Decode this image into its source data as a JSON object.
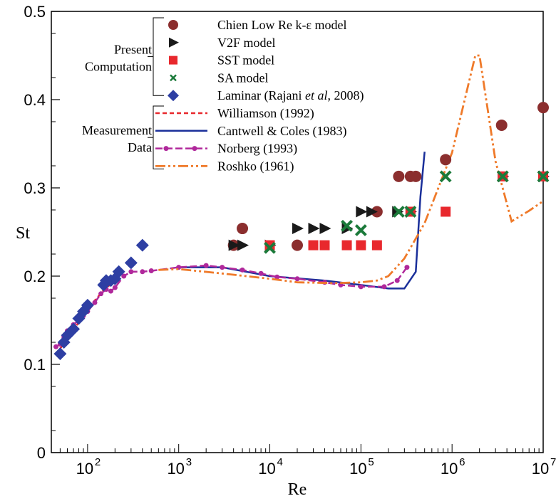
{
  "chart_data": {
    "type": "scatter",
    "xlabel": "Re",
    "ylabel": "St",
    "xscale": "log",
    "xlim": [
      40,
      10000000
    ],
    "ylim": [
      0,
      0.5
    ],
    "x_ticks": [
      {
        "value": 100,
        "mantissa": "10",
        "exp": "2"
      },
      {
        "value": 1000,
        "mantissa": "10",
        "exp": "3"
      },
      {
        "value": 10000,
        "mantissa": "10",
        "exp": "4"
      },
      {
        "value": 100000,
        "mantissa": "10",
        "exp": "5"
      },
      {
        "value": 1000000,
        "mantissa": "10",
        "exp": "6"
      },
      {
        "value": 10000000,
        "mantissa": "10",
        "exp": "7"
      }
    ],
    "y_ticks": [
      {
        "value": 0,
        "label": "0"
      },
      {
        "value": 0.1,
        "label": "0.1"
      },
      {
        "value": 0.2,
        "label": "0.2"
      },
      {
        "value": 0.3,
        "label": "0.3"
      },
      {
        "value": 0.4,
        "label": "0.4"
      },
      {
        "value": 0.5,
        "label": "0.5"
      }
    ],
    "groups": [
      {
        "lines": [
          "Present",
          "Computation"
        ],
        "series_from": 0,
        "series_to": 4
      },
      {
        "lines": [
          "Measurement",
          "Data"
        ],
        "series_from": 5,
        "series_to": 8
      }
    ],
    "series": [
      {
        "name": "Chien Low Re k-ε model",
        "kind": "marker",
        "marker": "circle",
        "color": "#8b2e2e",
        "points": [
          [
            4000,
            0.235
          ],
          [
            5000,
            0.254
          ],
          [
            20000,
            0.235
          ],
          [
            150000,
            0.273
          ],
          [
            260000,
            0.313
          ],
          [
            350000,
            0.313
          ],
          [
            400000,
            0.313
          ],
          [
            850000,
            0.332
          ],
          [
            3500000,
            0.371
          ],
          [
            10000000,
            0.391
          ]
        ]
      },
      {
        "name": "V2F model",
        "kind": "marker",
        "marker": "triangle",
        "color": "#1a1a1a",
        "points": [
          [
            4000,
            0.235
          ],
          [
            5000,
            0.235
          ],
          [
            10000,
            0.235
          ],
          [
            20000,
            0.254
          ],
          [
            30000,
            0.254
          ],
          [
            40000,
            0.254
          ],
          [
            70000,
            0.254
          ],
          [
            100000,
            0.273
          ],
          [
            130000,
            0.273
          ],
          [
            250000,
            0.273
          ],
          [
            350000,
            0.273
          ],
          [
            3600000,
            0.313
          ],
          [
            10000000,
            0.313
          ]
        ]
      },
      {
        "name": "SST model",
        "kind": "marker",
        "marker": "square",
        "color": "#e8282d",
        "points": [
          [
            10000,
            0.235
          ],
          [
            30000,
            0.235
          ],
          [
            40000,
            0.235
          ],
          [
            70000,
            0.235
          ],
          [
            100000,
            0.235
          ],
          [
            150000,
            0.235
          ],
          [
            350000,
            0.273
          ],
          [
            850000,
            0.273
          ],
          [
            3600000,
            0.313
          ],
          [
            10000000,
            0.313
          ]
        ]
      },
      {
        "name": "SA  model",
        "kind": "marker",
        "marker": "x",
        "color": "#1b7a3a",
        "points": [
          [
            10000,
            0.232
          ],
          [
            70000,
            0.257
          ],
          [
            100000,
            0.252
          ],
          [
            260000,
            0.273
          ],
          [
            350000,
            0.273
          ],
          [
            850000,
            0.313
          ],
          [
            3600000,
            0.313
          ],
          [
            10000000,
            0.313
          ]
        ]
      },
      {
        "name": "Laminar (Rajani et al, 2008)",
        "label_prefix": "Laminar (Rajani ",
        "label_italic": "et al",
        "label_suffix": ", 2008)",
        "kind": "marker",
        "marker": "diamond",
        "color": "#2e3fa3",
        "points": [
          [
            50,
            0.112
          ],
          [
            55,
            0.125
          ],
          [
            60,
            0.133
          ],
          [
            70,
            0.14
          ],
          [
            80,
            0.152
          ],
          [
            90,
            0.16
          ],
          [
            100,
            0.167
          ],
          [
            150,
            0.19
          ],
          [
            160,
            0.195
          ],
          [
            180,
            0.195
          ],
          [
            200,
            0.197
          ],
          [
            220,
            0.205
          ],
          [
            300,
            0.215
          ],
          [
            400,
            0.235
          ]
        ]
      },
      {
        "name": "Williamson (1992)",
        "kind": "line",
        "dash": "6,4",
        "color": "#e8282d",
        "stroke": 2.5,
        "points": [
          [
            50,
            0.118
          ],
          [
            60,
            0.128
          ],
          [
            80,
            0.148
          ],
          [
            100,
            0.163
          ],
          [
            150,
            0.184
          ],
          [
            200,
            0.195
          ]
        ]
      },
      {
        "name": "Cantwell & Coles (1983)",
        "kind": "line",
        "dash": "",
        "color": "#1a2f9a",
        "stroke": 2.5,
        "points": [
          [
            1000,
            0.21
          ],
          [
            3000,
            0.21
          ],
          [
            10000,
            0.2
          ],
          [
            40000,
            0.195
          ],
          [
            100000,
            0.19
          ],
          [
            200000,
            0.186
          ],
          [
            300000,
            0.186
          ],
          [
            400000,
            0.205
          ],
          [
            450000,
            0.29
          ],
          [
            500000,
            0.341
          ]
        ]
      },
      {
        "name": "Norberg (1993)",
        "kind": "line-marker",
        "dash": "10,4",
        "color": "#b0289b",
        "stroke": 2.5,
        "points": [
          [
            45,
            0.12
          ],
          [
            50,
            0.123
          ],
          [
            55,
            0.131
          ],
          [
            60,
            0.138
          ],
          [
            70,
            0.145
          ],
          [
            80,
            0.15
          ],
          [
            90,
            0.155
          ],
          [
            100,
            0.16
          ],
          [
            120,
            0.17
          ],
          [
            140,
            0.18
          ],
          [
            160,
            0.185
          ],
          [
            180,
            0.183
          ],
          [
            200,
            0.187
          ],
          [
            250,
            0.2
          ],
          [
            300,
            0.205
          ],
          [
            400,
            0.205
          ],
          [
            500,
            0.206
          ],
          [
            1000,
            0.21
          ],
          [
            2000,
            0.212
          ],
          [
            3000,
            0.21
          ],
          [
            5000,
            0.207
          ],
          [
            8000,
            0.203
          ],
          [
            12000,
            0.199
          ],
          [
            20000,
            0.197
          ],
          [
            40000,
            0.193
          ],
          [
            60000,
            0.19
          ],
          [
            100000,
            0.188
          ],
          [
            180000,
            0.188
          ],
          [
            250000,
            0.195
          ],
          [
            320000,
            0.21
          ]
        ]
      },
      {
        "name": "Roshko (1961)",
        "kind": "line",
        "dash": "14,4,3,4,3,4",
        "color": "#ef7a2a",
        "stroke": 2.8,
        "points": [
          [
            600,
            0.207
          ],
          [
            1000,
            0.208
          ],
          [
            3000,
            0.203
          ],
          [
            10000,
            0.197
          ],
          [
            20000,
            0.193
          ],
          [
            50000,
            0.192
          ],
          [
            100000,
            0.193
          ],
          [
            150000,
            0.195
          ],
          [
            200000,
            0.2
          ],
          [
            300000,
            0.22
          ],
          [
            500000,
            0.26
          ],
          [
            1000000,
            0.34
          ],
          [
            1800000,
            0.45
          ],
          [
            2000000,
            0.45
          ],
          [
            3000000,
            0.33
          ],
          [
            4500000,
            0.262
          ],
          [
            7000000,
            0.274
          ],
          [
            10000000,
            0.285
          ]
        ]
      }
    ]
  }
}
